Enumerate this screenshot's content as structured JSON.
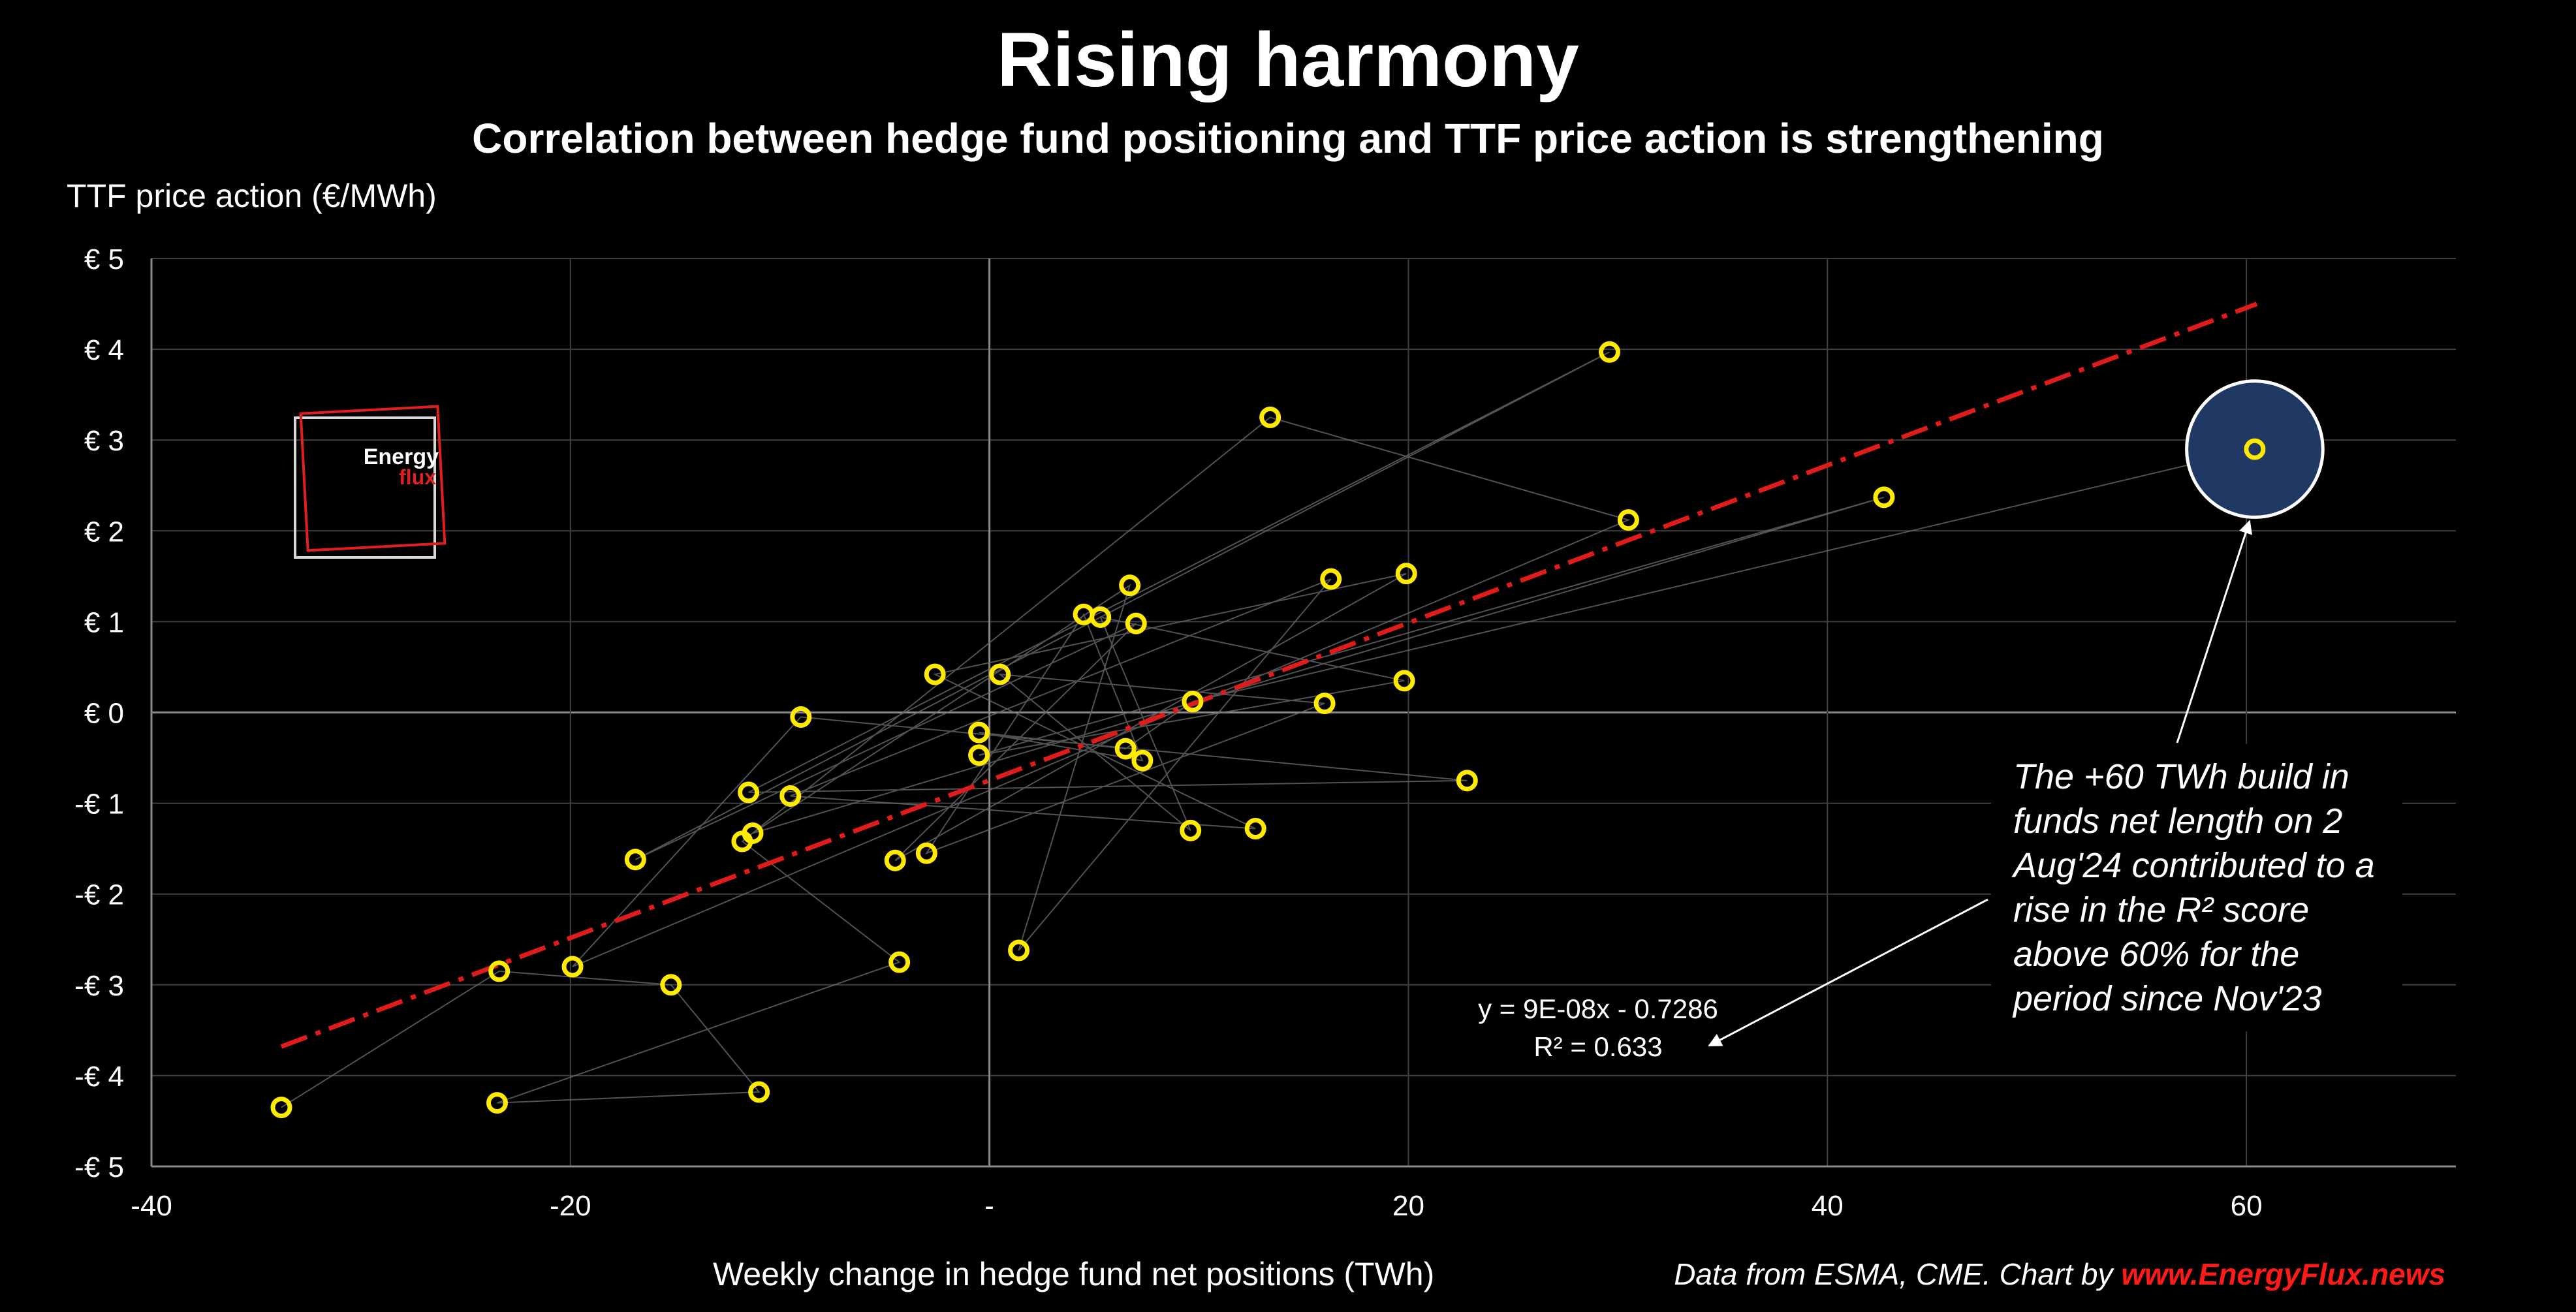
{
  "header": {
    "title": "Rising harmony",
    "subtitle": "Correlation between hedge fund positioning and TTF price action is strengthening"
  },
  "footer": {
    "source_prefix": "Data from ESMA, CME. Chart by ",
    "source_brand": "www.EnergyFlux.news"
  },
  "logo": {
    "word1": "Energy",
    "word2": "flux"
  },
  "annotation": {
    "text": "The +60 TWh build in funds net length on 2 Aug'24 contributed to a rise in the R² score above 60% for the period since Nov'23"
  },
  "colors": {
    "background": "#000000",
    "point": "#ffea00",
    "trendline": "#e01b1b",
    "connector": "#6e6e6e",
    "grid": "#404040",
    "highlight_fill": "#1f3864",
    "logo_red": "#e02020"
  },
  "chart_data": {
    "type": "scatter",
    "title": "Rising harmony",
    "subtitle": "Correlation between hedge fund positioning and TTF price action is strengthening",
    "xlabel": "Weekly change in hedge fund net positions (TWh)",
    "ylabel": "TTF price action (€/MWh)",
    "xlim": [
      -40,
      70
    ],
    "ylim": [
      -5,
      5
    ],
    "x_ticks": [
      -40,
      -20,
      0,
      20,
      40,
      60
    ],
    "x_tick_labels": [
      "-40",
      "-20",
      "-",
      "20",
      "40",
      "60"
    ],
    "y_ticks": [
      5,
      4,
      3,
      2,
      1,
      0,
      -1,
      -2,
      -3,
      -4,
      -5
    ],
    "y_tick_labels": [
      "€ 5",
      "€ 4",
      "€ 3",
      "€ 2",
      "€ 1",
      "€ 0",
      "-€ 1",
      "-€ 2",
      "-€ 3",
      "-€ 4",
      "-€ 5"
    ],
    "grid": true,
    "points": [
      {
        "x": -33.8,
        "y": -4.35
      },
      {
        "x": -23.5,
        "y": -4.3
      },
      {
        "x": -11.0,
        "y": -4.18
      },
      {
        "x": -23.4,
        "y": -2.85
      },
      {
        "x": -19.9,
        "y": -2.8
      },
      {
        "x": -15.2,
        "y": -3.0
      },
      {
        "x": -4.3,
        "y": -2.75
      },
      {
        "x": 1.4,
        "y": -2.62
      },
      {
        "x": -16.9,
        "y": -1.62
      },
      {
        "x": -11.8,
        "y": -1.42
      },
      {
        "x": -11.3,
        "y": -1.33
      },
      {
        "x": -4.5,
        "y": -1.63
      },
      {
        "x": -3.0,
        "y": -1.55
      },
      {
        "x": -11.5,
        "y": -0.88
      },
      {
        "x": -9.5,
        "y": -0.92
      },
      {
        "x": 9.6,
        "y": -1.3
      },
      {
        "x": 12.7,
        "y": -1.28
      },
      {
        "x": -9.0,
        "y": -0.05
      },
      {
        "x": -2.6,
        "y": 0.42
      },
      {
        "x": -0.5,
        "y": -0.22
      },
      {
        "x": -0.5,
        "y": -0.47
      },
      {
        "x": 0.5,
        "y": 0.42
      },
      {
        "x": 4.5,
        "y": 1.08
      },
      {
        "x": 5.3,
        "y": 1.05
      },
      {
        "x": 6.7,
        "y": 1.4
      },
      {
        "x": 7.0,
        "y": 0.98
      },
      {
        "x": 6.5,
        "y": -0.4
      },
      {
        "x": 7.3,
        "y": -0.53
      },
      {
        "x": 9.7,
        "y": 0.12
      },
      {
        "x": 13.4,
        "y": 3.25
      },
      {
        "x": 16.0,
        "y": 0.1
      },
      {
        "x": 16.3,
        "y": 1.47
      },
      {
        "x": 19.8,
        "y": 0.35
      },
      {
        "x": 19.9,
        "y": 1.53
      },
      {
        "x": 22.8,
        "y": -0.75
      },
      {
        "x": 29.6,
        "y": 3.97
      },
      {
        "x": 30.5,
        "y": 2.12
      },
      {
        "x": 42.7,
        "y": 2.37
      },
      {
        "x": 60.4,
        "y": 2.9
      }
    ],
    "connector_path": [
      [
        -33.8,
        -4.35
      ],
      [
        -23.4,
        -2.85
      ],
      [
        -15.2,
        -3.0
      ],
      [
        -11.0,
        -4.18
      ],
      [
        -23.5,
        -4.3
      ],
      [
        -4.3,
        -2.75
      ],
      [
        -11.8,
        -1.42
      ],
      [
        13.4,
        3.25
      ],
      [
        30.5,
        2.12
      ],
      [
        -19.9,
        -2.8
      ],
      [
        -9.0,
        -0.05
      ],
      [
        22.8,
        -0.75
      ],
      [
        -11.5,
        -0.88
      ],
      [
        29.6,
        3.97
      ],
      [
        -16.9,
        -1.62
      ],
      [
        7.0,
        0.98
      ],
      [
        -4.5,
        -1.63
      ],
      [
        19.9,
        1.53
      ],
      [
        -2.6,
        0.42
      ],
      [
        12.7,
        -1.28
      ],
      [
        -9.5,
        -0.92
      ],
      [
        16.3,
        1.47
      ],
      [
        1.4,
        -2.62
      ],
      [
        6.7,
        1.4
      ],
      [
        -11.3,
        -1.33
      ],
      [
        42.7,
        2.37
      ],
      [
        -0.5,
        -0.47
      ],
      [
        19.8,
        0.35
      ],
      [
        5.3,
        1.05
      ],
      [
        9.6,
        -1.3
      ],
      [
        0.5,
        0.42
      ],
      [
        16.0,
        0.1
      ],
      [
        -3.0,
        -1.55
      ],
      [
        4.5,
        1.08
      ],
      [
        7.3,
        -0.53
      ],
      [
        -0.5,
        -0.22
      ],
      [
        6.5,
        -0.4
      ],
      [
        9.7,
        0.12
      ],
      [
        60.4,
        2.9
      ]
    ],
    "trendline": {
      "x_range": [
        -33.8,
        60.5
      ],
      "y_start": -3.68,
      "y_end": 4.5,
      "equation": "y = 9E-08x - 0.7286",
      "r_squared": "R² = 0.633"
    },
    "highlight": {
      "x": 60.4,
      "y": 2.9,
      "radius_y": 0.75
    }
  }
}
